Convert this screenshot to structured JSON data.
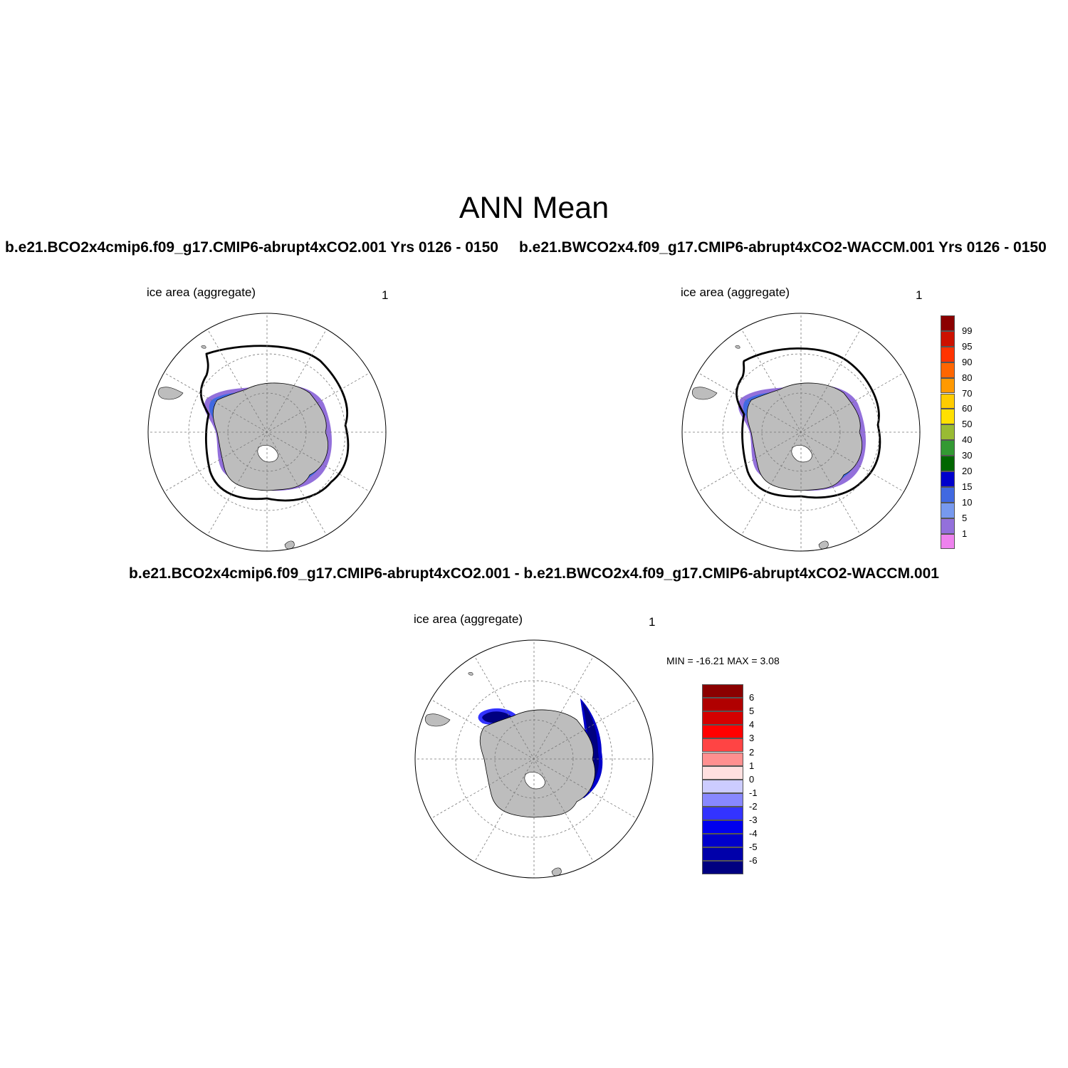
{
  "figure": {
    "title": "ANN Mean"
  },
  "panels": [
    {
      "id": "case1",
      "heading": "b.e21.BCO2x4cmip6.f09_g17.CMIP6-abrupt4xCO2.001  Yrs 0126 - 0150",
      "left_label": "ice area  (aggregate)",
      "right_label": "1"
    },
    {
      "id": "case2",
      "heading": "b.e21.BWCO2x4.f09_g17.CMIP6-abrupt4xCO2-WACCM.001  Yrs 0126 - 0150",
      "left_label": "ice area  (aggregate)",
      "right_label": "1"
    },
    {
      "id": "difference",
      "heading": "b.e21.BCO2x4cmip6.f09_g17.CMIP6-abrupt4xCO2.001 - b.e21.BWCO2x4.f09_g17.CMIP6-abrupt4xCO2-WACCM.001",
      "left_label": "ice area  (aggregate)",
      "right_label": "1",
      "minmax": "MIN = -16.21 MAX =   3.08"
    }
  ],
  "colorbar_concentration": {
    "labels": [
      "99",
      "95",
      "90",
      "80",
      "70",
      "60",
      "50",
      "40",
      "30",
      "20",
      "15",
      "10",
      "5",
      "1"
    ],
    "colors": [
      "#8b0000",
      "#cc1100",
      "#ff3300",
      "#ff6600",
      "#ff9900",
      "#ffcc00",
      "#ffe000",
      "#99bb33",
      "#339933",
      "#006600",
      "#0000cc",
      "#4169e1",
      "#7799ee",
      "#9370db",
      "#ee82ee"
    ]
  },
  "colorbar_difference": {
    "labels": [
      "6",
      "5",
      "4",
      "3",
      "2",
      "1",
      "0",
      "-1",
      "-2",
      "-3",
      "-4",
      "-5",
      "-6"
    ],
    "colors": [
      "#8b0000",
      "#b00000",
      "#d40000",
      "#ff0000",
      "#ff4444",
      "#ff9090",
      "#ffe0e0",
      "#ccccff",
      "#8888ff",
      "#3333ff",
      "#0000ee",
      "#0000cc",
      "#0000aa",
      "#000080"
    ]
  }
}
